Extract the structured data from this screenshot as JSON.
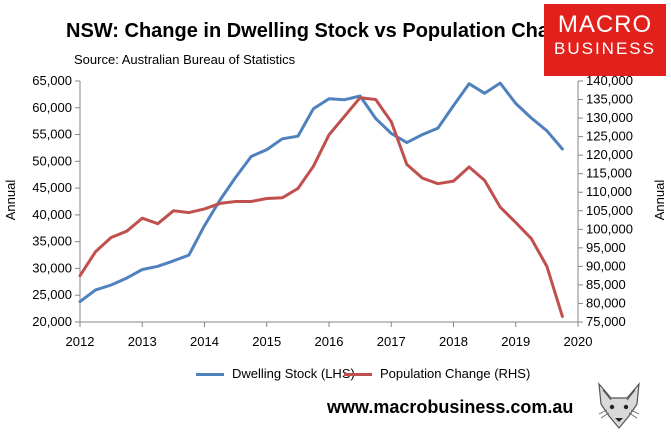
{
  "header": {
    "title": "NSW: Change in Dwelling Stock vs Population Change",
    "source": "Source: Australian Bureau of Statistics"
  },
  "logo": {
    "line1": "MACRO",
    "line2": "BUSINESS",
    "color": "#e3211c"
  },
  "footer": {
    "website": "www.macrobusiness.com.au"
  },
  "chart_data": {
    "type": "line",
    "title": "NSW: Change in Dwelling Stock vs Population Change",
    "xlabel": "",
    "ylabel_left": "Annual",
    "ylabel_right": "Annual",
    "xlim": [
      2012,
      2020
    ],
    "ylim_left": [
      20000,
      65000
    ],
    "ylim_right": [
      75000,
      140000
    ],
    "x_ticks": [
      "2012",
      "2013",
      "2014",
      "2015",
      "2016",
      "2017",
      "2018",
      "2019",
      "2020"
    ],
    "y_left_ticks": [
      "20,000",
      "25,000",
      "30,000",
      "35,000",
      "40,000",
      "45,000",
      "50,000",
      "55,000",
      "60,000",
      "65,000"
    ],
    "y_right_ticks": [
      "75,000",
      "80,000",
      "85,000",
      "90,000",
      "95,000",
      "100,000",
      "105,000",
      "110,000",
      "115,000",
      "120,000",
      "125,000",
      "130,000",
      "135,000",
      "140,000"
    ],
    "grid": false,
    "legend_position": "bottom",
    "series": [
      {
        "name": "Dwelling Stock (LHS)",
        "axis": "left",
        "color": "#4f81bd",
        "x": [
          2012.0,
          2012.25,
          2012.5,
          2012.75,
          2013.0,
          2013.25,
          2013.5,
          2013.75,
          2014.0,
          2014.25,
          2014.5,
          2014.75,
          2015.0,
          2015.25,
          2015.5,
          2015.75,
          2016.0,
          2016.25,
          2016.5,
          2016.75,
          2017.0,
          2017.25,
          2017.5,
          2017.75,
          2018.0,
          2018.25,
          2018.5,
          2018.75,
          2019.0,
          2019.25,
          2019.5,
          2019.75
        ],
        "values": [
          23800,
          26000,
          26900,
          28200,
          29800,
          30400,
          31400,
          32500,
          38000,
          42800,
          47000,
          50900,
          52200,
          54200,
          54700,
          59800,
          61700,
          61500,
          62200,
          58000,
          55200,
          53500,
          55000,
          56200,
          60400,
          64500,
          62700,
          64600,
          60800,
          58100,
          55700,
          52300
        ]
      },
      {
        "name": "Population Change (RHS)",
        "axis": "right",
        "color": "#c0504d",
        "x": [
          2012.0,
          2012.25,
          2012.5,
          2012.75,
          2013.0,
          2013.25,
          2013.5,
          2013.75,
          2014.0,
          2014.25,
          2014.5,
          2014.75,
          2015.0,
          2015.25,
          2015.5,
          2015.75,
          2016.0,
          2016.25,
          2016.5,
          2016.75,
          2017.0,
          2017.25,
          2017.5,
          2017.75,
          2018.0,
          2018.25,
          2018.5,
          2018.75,
          2019.0,
          2019.25,
          2019.5,
          2019.75
        ],
        "values": [
          87500,
          94000,
          97800,
          99500,
          103000,
          101500,
          105000,
          104500,
          105500,
          107000,
          107500,
          107500,
          108300,
          108500,
          111000,
          117000,
          125500,
          130500,
          135500,
          135000,
          129000,
          117500,
          113800,
          112300,
          113000,
          116800,
          113200,
          106000,
          101800,
          97500,
          90000,
          76500
        ]
      }
    ]
  }
}
